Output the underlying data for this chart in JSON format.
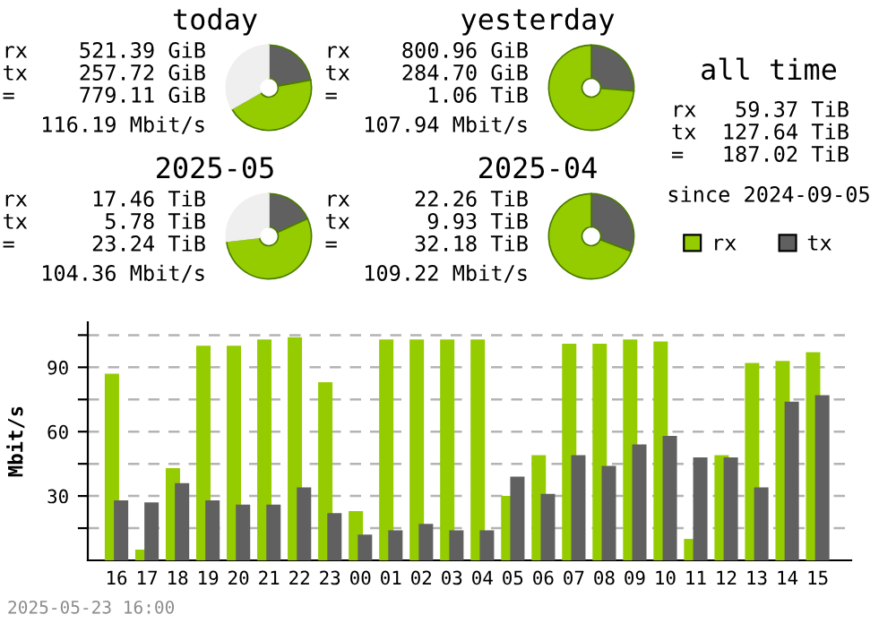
{
  "chart_data": [
    {
      "type": "donut",
      "title": "today",
      "categories": [
        null,
        null,
        null
      ],
      "values": [
        22.1,
        44.6,
        33.3
      ],
      "colors": [
        "#606060",
        "#94cc00",
        "#efefef"
      ],
      "annotations": [
        "rx 521.39 GiB",
        "tx 257.72 GiB",
        "= 779.11 GiB",
        "116.19 Mbit/s"
      ]
    },
    {
      "type": "donut",
      "title": "yesterday",
      "categories": [
        null,
        null
      ],
      "values": [
        26.2,
        73.8
      ],
      "colors": [
        "#606060",
        "#94cc00"
      ],
      "annotations": [
        "rx 800.96 GiB",
        "tx 284.70 GiB",
        "= 1.06 TiB",
        "107.94 Mbit/s"
      ]
    },
    {
      "type": "donut",
      "title": "2025-05",
      "categories": [
        null,
        null,
        null
      ],
      "values": [
        18.2,
        54.9,
        26.9
      ],
      "colors": [
        "#606060",
        "#94cc00",
        "#efefef"
      ],
      "annotations": [
        "rx 17.46 TiB",
        "tx 5.78 TiB",
        "= 23.24 TiB",
        "104.36 Mbit/s"
      ]
    },
    {
      "type": "donut",
      "title": "2025-04",
      "categories": [
        null,
        null
      ],
      "values": [
        30.8,
        69.2
      ],
      "colors": [
        "#606060",
        "#94cc00"
      ],
      "annotations": [
        "rx 22.26 TiB",
        "tx 9.93 TiB",
        "= 32.18 TiB",
        "109.22 Mbit/s"
      ]
    },
    {
      "type": "other",
      "title": "all time",
      "annotations": [
        "rx 59.37 TiB",
        "tx 127.64 TiB",
        "= 187.02 TiB",
        "since 2024-09-05"
      ]
    },
    {
      "type": "bar",
      "ylabel": "Mbit/s",
      "categories": [
        "16",
        "17",
        "18",
        "19",
        "20",
        "21",
        "22",
        "23",
        "00",
        "01",
        "02",
        "03",
        "04",
        "05",
        "06",
        "07",
        "08",
        "09",
        "10",
        "11",
        "12",
        "13",
        "14",
        "15"
      ],
      "series": [
        {
          "name": "rx",
          "color": "#94cc00",
          "values": [
            87,
            5,
            43,
            100,
            100,
            103,
            104,
            83,
            23,
            103,
            103,
            103,
            103,
            30,
            49,
            101,
            101,
            103,
            102,
            10,
            49,
            92,
            93,
            97
          ]
        },
        {
          "name": "tx",
          "color": "#606060",
          "values": [
            28,
            27,
            36,
            28,
            26,
            26,
            34,
            22,
            12,
            14,
            17,
            14,
            14,
            39,
            31,
            49,
            44,
            54,
            58,
            48,
            48,
            34,
            74,
            77
          ]
        }
      ],
      "ylim": [
        0,
        111
      ],
      "yticks": [
        {
          "value": 15,
          "label": null
        },
        30,
        {
          "value": 45,
          "label": null
        },
        60,
        {
          "value": 75,
          "label": null
        },
        90,
        {
          "value": 105,
          "label": null
        }
      ],
      "grid": "y",
      "legend": "top right",
      "annotations": [
        "2025-05-23 16:00"
      ]
    }
  ]
}
